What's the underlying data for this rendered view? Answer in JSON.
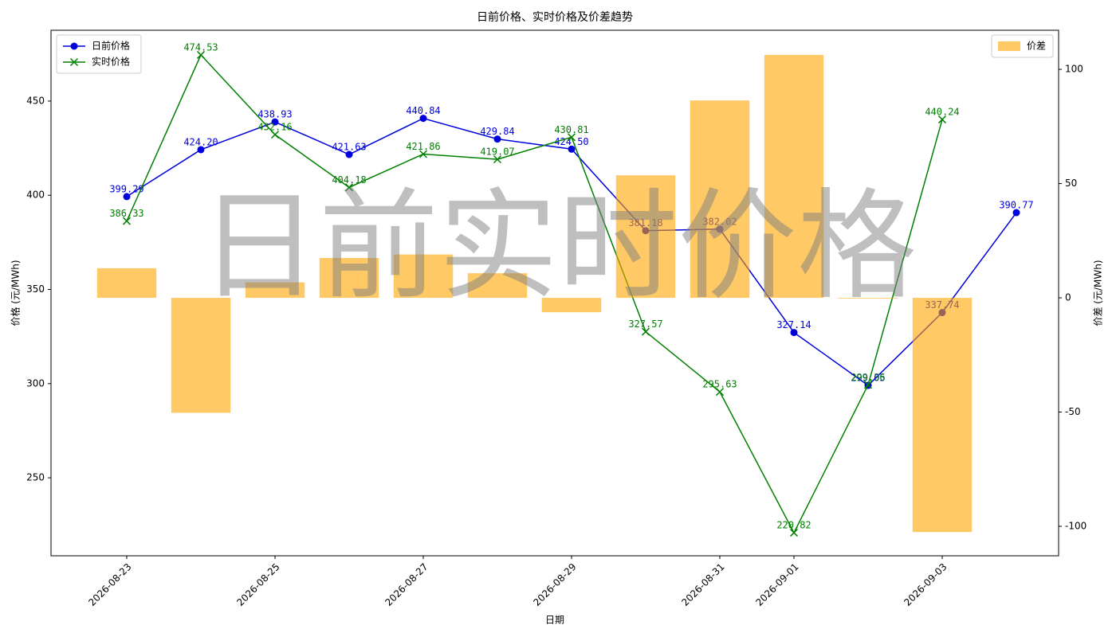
{
  "chart_data": {
    "type": "line",
    "title": "日前价格、实时价格及价差趋势",
    "xlabel": "日期",
    "ylabel": "价格 (元/MWh)",
    "y2label": "价差 (元/MWh)",
    "watermark": "日前实时价格",
    "x": [
      "2026-08-23",
      "2026-08-24",
      "2026-08-25",
      "2026-08-26",
      "2026-08-27",
      "2026-08-28",
      "2026-08-29",
      "2026-08-30",
      "2026-08-31",
      "2026-09-01",
      "2026-09-02",
      "2026-09-03",
      "2026-09-04"
    ],
    "xticks": [
      "2026-08-23",
      "2026-08-25",
      "2026-08-27",
      "2026-08-29",
      "2026-08-31",
      "2026-09-01",
      "2026-09-03"
    ],
    "ylim": [
      208.6,
      487.6
    ],
    "yticks": [
      250,
      300,
      350,
      400,
      450
    ],
    "y2lim": [
      -112.9,
      117.1
    ],
    "y2ticks": [
      -100,
      -50,
      0,
      50,
      100
    ],
    "legend": "upper left",
    "legend2": "upper right",
    "series": [
      {
        "name": "日前价格",
        "color": "#0000dd",
        "type": "line",
        "marker": "circle",
        "values": [
          399.29,
          424.2,
          438.93,
          421.63,
          440.84,
          429.84,
          424.5,
          381.18,
          382.02,
          327.14,
          299.05,
          337.74,
          390.77
        ],
        "value_labels": [
          "399.29",
          "424.20",
          "438.93",
          "421.63",
          "440.84",
          "429.84",
          "424.50",
          "381.18",
          "382.02",
          "327.14",
          "299.05",
          "337.74",
          "390.77"
        ]
      },
      {
        "name": "实时价格",
        "color": "#008000",
        "type": "line",
        "marker": "x",
        "values": [
          386.33,
          474.53,
          432.16,
          404.18,
          421.86,
          419.07,
          430.81,
          327.57,
          295.63,
          220.82,
          299.36,
          440.24,
          null
        ],
        "value_labels": [
          "386.33",
          "474.53",
          "432.16",
          "404.18",
          "421.86",
          "419.07",
          "430.81",
          "327.57",
          "295.63",
          "220.82",
          "299.36",
          "440.24",
          null
        ]
      },
      {
        "name": "价差",
        "color": "#ffa500",
        "type": "bar",
        "axis": "y2",
        "values": [
          12.96,
          -50.33,
          6.77,
          17.45,
          18.98,
          10.77,
          -6.31,
          53.61,
          86.39,
          106.32,
          -0.31,
          -102.5,
          null
        ]
      }
    ]
  }
}
